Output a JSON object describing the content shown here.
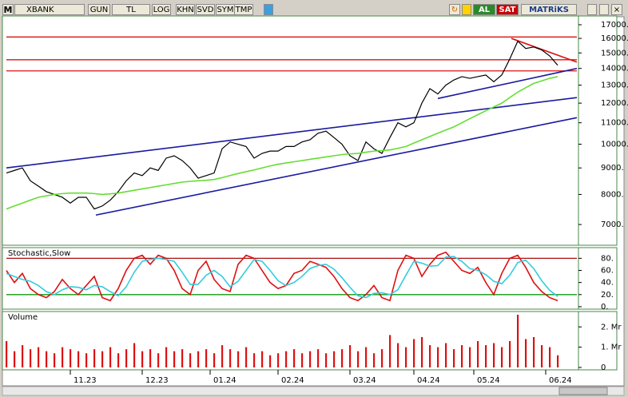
{
  "toolbar": {
    "symbol_prefix": "M",
    "symbol": "XBANK",
    "buttons": [
      "GUN",
      "TL",
      "LOG",
      "KHN",
      "SVD",
      "SYM",
      "TMP"
    ],
    "buy": "AL",
    "sell": "SAT",
    "brand": "MATRiKS"
  },
  "chart_data": [
    {
      "type": "line",
      "log": true,
      "xlim": [
        0,
        71.4
      ],
      "ylim": [
        6430,
        17550
      ],
      "yticks": [
        {
          "value": 17000,
          "label": "17000."
        },
        {
          "value": 16000,
          "label": "16000."
        },
        {
          "value": 15000,
          "label": "15000."
        },
        {
          "value": 14000,
          "label": "14000."
        },
        {
          "value": 13000,
          "label": "13000."
        },
        {
          "value": 12000,
          "label": "12000."
        },
        {
          "value": 11000,
          "label": "11000."
        },
        {
          "value": 10000,
          "label": "10000."
        },
        {
          "value": 9000,
          "label": "9000."
        },
        {
          "value": 8000,
          "label": "8000."
        },
        {
          "value": 7000,
          "label": "7000."
        }
      ],
      "series": [
        {
          "color": "#000000",
          "values": [
            8800,
            8900,
            9000,
            8500,
            8300,
            8100,
            8000,
            7900,
            7700,
            7900,
            7900,
            7500,
            7600,
            7800,
            8100,
            8500,
            8800,
            8700,
            9000,
            8900,
            9400,
            9500,
            9300,
            9000,
            8600,
            8700,
            8800,
            9800,
            10100,
            10000,
            9900,
            9400,
            9600,
            9700,
            9700,
            9900,
            9900,
            10100,
            10200,
            10500,
            10600,
            10300,
            10000,
            9500,
            9300,
            10100,
            9800,
            9600,
            10300,
            11000,
            10800,
            11000,
            12000,
            12800,
            12500,
            13000,
            13300,
            13500,
            13400,
            13500,
            13600,
            13200,
            13600,
            14600,
            15800,
            15300,
            15400,
            15200,
            14800,
            14200
          ]
        },
        {
          "color": "#66dd33",
          "values": [
            7500,
            7600,
            7700,
            7800,
            7900,
            7950,
            8000,
            8030,
            8050,
            8050,
            8050,
            8030,
            8000,
            8020,
            8050,
            8100,
            8150,
            8200,
            8250,
            8300,
            8350,
            8400,
            8450,
            8480,
            8500,
            8520,
            8550,
            8620,
            8700,
            8780,
            8850,
            8920,
            9000,
            9080,
            9150,
            9200,
            9250,
            9300,
            9350,
            9400,
            9450,
            9500,
            9550,
            9580,
            9600,
            9650,
            9700,
            9720,
            9750,
            9820,
            9900,
            10050,
            10200,
            10350,
            10500,
            10650,
            10800,
            11000,
            11200,
            11400,
            11600,
            11800,
            12000,
            12300,
            12600,
            12850,
            13100,
            13250,
            13400,
            13500
          ]
        }
      ],
      "levels": [
        16100,
        14550,
        13850
      ],
      "level_color": "#dd1111",
      "trendlines": [
        {
          "color": "#1a1aa0",
          "x": [
            0,
            71.4
          ],
          "y": [
            9000,
            12300
          ]
        },
        {
          "color": "#1a1aa0",
          "x": [
            11.2,
            71.4
          ],
          "y": [
            7300,
            11250
          ]
        },
        {
          "color": "#1a1aa0",
          "x": [
            54,
            71.4
          ],
          "y": [
            12250,
            14000
          ]
        },
        {
          "color": "#dd1111",
          "x": [
            63.2,
            71.4
          ],
          "y": [
            16000,
            14400
          ]
        }
      ]
    },
    {
      "type": "line",
      "title": "Stochastic,Slow",
      "xlim": [
        0,
        71.4
      ],
      "ylim": [
        -1.4,
        95
      ],
      "yticks": [
        {
          "value": 80,
          "label": "80."
        },
        {
          "value": 60,
          "label": "60."
        },
        {
          "value": 40,
          "label": "40."
        },
        {
          "value": 20,
          "label": "20."
        },
        {
          "value": 0,
          "label": "0."
        }
      ],
      "series": [
        {
          "color": "#dd1111",
          "values": [
            60,
            40,
            55,
            30,
            20,
            15,
            25,
            45,
            30,
            20,
            35,
            50,
            15,
            10,
            30,
            60,
            80,
            85,
            70,
            85,
            80,
            60,
            30,
            20,
            60,
            75,
            45,
            30,
            25,
            70,
            85,
            80,
            60,
            40,
            30,
            35,
            55,
            60,
            75,
            70,
            65,
            50,
            30,
            15,
            10,
            20,
            35,
            15,
            10,
            60,
            85,
            80,
            50,
            70,
            85,
            90,
            75,
            60,
            55,
            65,
            40,
            20,
            55,
            80,
            85,
            65,
            40,
            25,
            15,
            10
          ]
        },
        {
          "color": "#33ccdd",
          "values": [
            55,
            50,
            45,
            42,
            35,
            25,
            20,
            28,
            33,
            32,
            28,
            35,
            33,
            25,
            18,
            33,
            57,
            75,
            78,
            80,
            78,
            75,
            57,
            37,
            37,
            52,
            60,
            50,
            33,
            42,
            60,
            78,
            75,
            60,
            43,
            35,
            40,
            50,
            63,
            68,
            70,
            62,
            48,
            32,
            18,
            15,
            22,
            23,
            20,
            28,
            52,
            75,
            72,
            67,
            68,
            82,
            83,
            75,
            63,
            60,
            53,
            42,
            38,
            52,
            73,
            77,
            63,
            43,
            27,
            17
          ]
        }
      ],
      "levels": [
        80,
        20
      ],
      "level_colors": [
        "#aa1111",
        "#119911"
      ]
    },
    {
      "type": "bar",
      "title": "Volume",
      "color": "#dd1111",
      "xlim": [
        0,
        71.4
      ],
      "ylim": [
        -0.04,
        2.68
      ],
      "yticks": [
        {
          "value": 2,
          "label": "2. Mr"
        },
        {
          "value": 1,
          "label": "1. Mr"
        },
        0
      ],
      "values": [
        1.3,
        0.8,
        1.1,
        0.9,
        1.0,
        0.8,
        0.7,
        1.0,
        0.9,
        0.8,
        0.7,
        0.9,
        0.8,
        1.0,
        0.7,
        0.9,
        1.2,
        0.8,
        0.9,
        0.7,
        1.0,
        0.8,
        0.9,
        0.7,
        0.8,
        0.9,
        0.7,
        1.1,
        0.9,
        0.8,
        1.0,
        0.7,
        0.8,
        0.6,
        0.7,
        0.8,
        0.9,
        0.7,
        0.8,
        0.9,
        0.7,
        0.8,
        0.9,
        1.1,
        0.8,
        1.0,
        0.7,
        0.9,
        1.6,
        1.2,
        1.0,
        1.4,
        1.5,
        1.1,
        1.0,
        1.2,
        0.9,
        1.1,
        1.0,
        1.3,
        1.1,
        1.2,
        1.0,
        1.3,
        2.6,
        1.4,
        1.5,
        1.1,
        1.0,
        0.6
      ],
      "xticks": [
        {
          "value": 8,
          "label": "11.23"
        },
        {
          "value": 17,
          "label": "12.23"
        },
        {
          "value": 25.5,
          "label": "01.24"
        },
        {
          "value": 34,
          "label": "02.24"
        },
        {
          "value": 43,
          "label": "03.24"
        },
        {
          "value": 51,
          "label": "04.24"
        },
        {
          "value": 58.5,
          "label": "05.24"
        },
        {
          "value": 67.5,
          "label": "06.24"
        }
      ]
    }
  ]
}
